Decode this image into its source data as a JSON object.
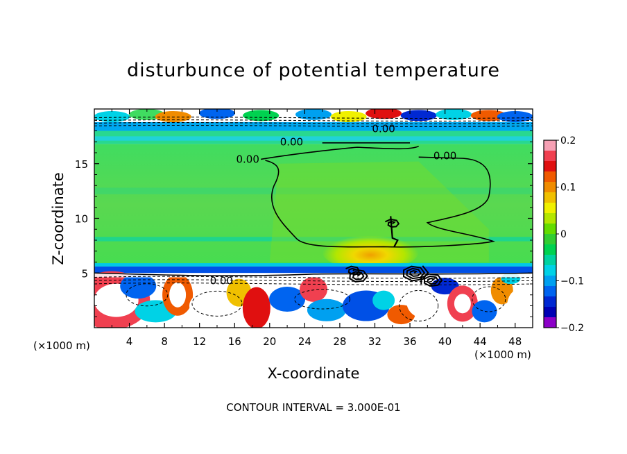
{
  "chart_data": {
    "type": "heatmap",
    "title": "disturbunce of potential temperature",
    "xlabel": "X-coordinate",
    "ylabel": "Z-coordinate",
    "x_unit": "(×1000 m)",
    "z_unit": "(×1000 m)",
    "xlim": [
      0,
      50
    ],
    "ylim": [
      0,
      20
    ],
    "x_ticks": [
      4,
      8,
      12,
      16,
      20,
      24,
      28,
      32,
      36,
      40,
      44,
      48
    ],
    "y_ticks": [
      5,
      10,
      15
    ],
    "colorbar": {
      "min": -0.2,
      "max": 0.2,
      "tick_values": [
        0.2,
        0.1,
        0,
        -0.1,
        -0.2
      ],
      "tick_labels": [
        "0.2",
        "0.1",
        "0",
        "−0.1",
        "−0.2"
      ],
      "colors": [
        "#f5a0b4",
        "#f04050",
        "#e01010",
        "#f05a00",
        "#f08c00",
        "#f0c000",
        "#f0f000",
        "#b4e600",
        "#64dc00",
        "#32cd32",
        "#00d250",
        "#00d2a0",
        "#00d2e6",
        "#00a0f0",
        "#0064f0",
        "#0028d2",
        "#0000b4",
        "#8c00c8"
      ]
    },
    "contour_interval_label": "CONTOUR INTERVAL = 3.000E-01",
    "contour_labels": [
      {
        "text": "0.00",
        "x": 22.5,
        "z": 17.0
      },
      {
        "text": "0.00",
        "x": 17.5,
        "z": 15.4
      },
      {
        "text": "0.00",
        "x": 40.0,
        "z": 15.7
      },
      {
        "text": "0.00",
        "x": 14.5,
        "z": 4.3
      },
      {
        "text": "0.00",
        "x": 33.0,
        "z": 18.2
      }
    ],
    "bands": [
      {
        "z0": 19.0,
        "z1": 20.0,
        "label": "mixed"
      },
      {
        "z0": 18.0,
        "z1": 19.0,
        "value": -0.06
      },
      {
        "z0": 16.8,
        "z1": 18.0,
        "value": -0.04
      },
      {
        "z0": 5.6,
        "z1": 16.8,
        "value": 0.0
      },
      {
        "z0": 5.0,
        "z1": 5.6,
        "value": -0.12
      },
      {
        "z0": 0.0,
        "z1": 5.0,
        "label": "mixed"
      }
    ]
  }
}
